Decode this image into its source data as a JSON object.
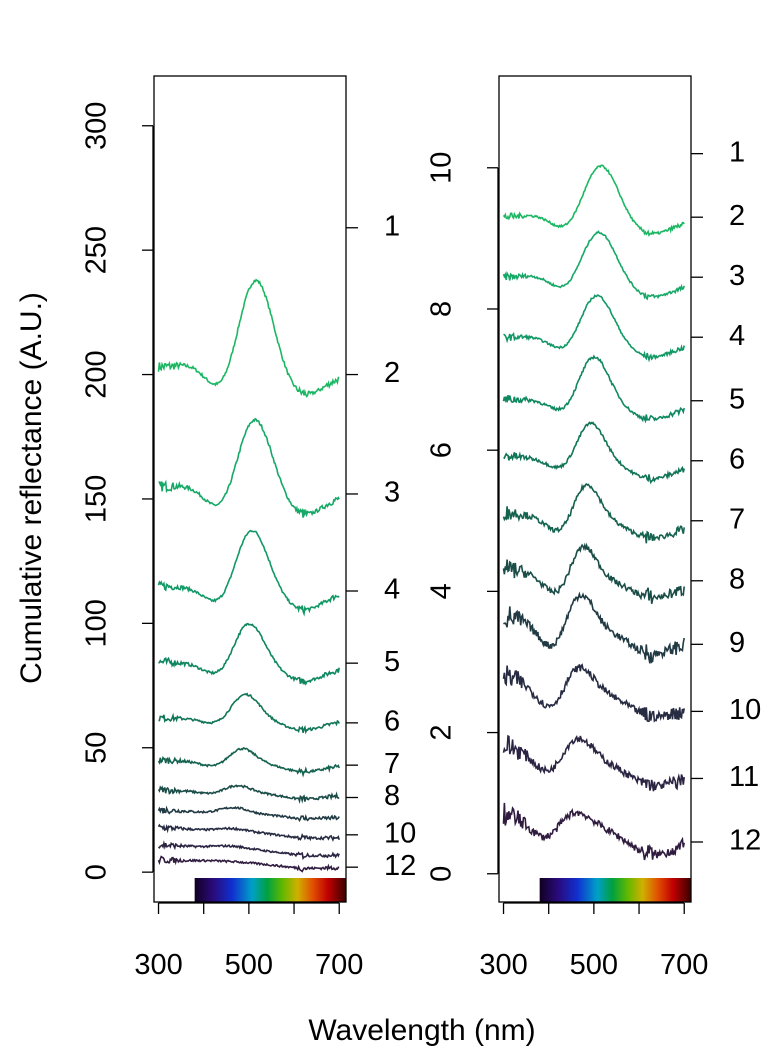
{
  "chart_data": {
    "type": "line",
    "ylabel": "Cumulative reflectance (A.U.)",
    "xlabel": "Wavelength (nm)",
    "panels": [
      {
        "xlim": [
          290,
          715
        ],
        "ylim": [
          -12,
          320
        ],
        "x_ticks": [
          300,
          500,
          700
        ],
        "y_ticks": [
          0,
          50,
          100,
          150,
          200,
          250,
          300
        ],
        "right_labels": [
          {
            "label": "1",
            "y": 259
          },
          {
            "label": "2",
            "y": 200
          },
          {
            "label": "3",
            "y": 152
          },
          {
            "label": "4",
            "y": 113
          },
          {
            "label": "5",
            "y": 84
          },
          {
            "label": "6",
            "y": 60
          },
          {
            "label": "7",
            "y": 43
          },
          {
            "label": "8",
            "y": 30
          },
          {
            "label": "10",
            "y": 15
          },
          {
            "label": "12",
            "y": 2
          }
        ],
        "spectrum_bar": {
          "x_start": 380,
          "x_end": 715
        },
        "series": [
          {
            "name": "2",
            "color": "#1db763",
            "x_start": 300,
            "x_end": 700,
            "base": 203,
            "offset_end": -3,
            "uv_amp": 2,
            "uv_center": 380,
            "dip_amp": -10,
            "dip_center": 440,
            "peak_amp": 38,
            "peak_center": 515,
            "peak_width": 38,
            "trough_amp": -9,
            "trough_center": 620,
            "noise": 0.6
          },
          {
            "name": "3",
            "color": "#16a866",
            "x_start": 300,
            "x_end": 700,
            "base": 155,
            "offset_end": -3,
            "uv_amp": 1,
            "uv_center": 380,
            "dip_amp": -10,
            "dip_center": 440,
            "peak_amp": 30,
            "peak_center": 512,
            "peak_width": 38,
            "trough_amp": -9,
            "trough_center": 620,
            "noise": 0.6
          },
          {
            "name": "4",
            "color": "#119865",
            "x_start": 300,
            "x_end": 700,
            "base": 115,
            "offset_end": -2,
            "uv_amp": 0,
            "uv_center": 380,
            "dip_amp": -8,
            "dip_center": 440,
            "peak_amp": 25,
            "peak_center": 505,
            "peak_width": 36,
            "trough_amp": -8,
            "trough_center": 620,
            "noise": 0.5
          },
          {
            "name": "5",
            "color": "#0f8760",
            "x_start": 300,
            "x_end": 700,
            "base": 84.5,
            "offset_end": -2,
            "uv_amp": 0,
            "uv_center": 380,
            "dip_amp": -6,
            "dip_center": 440,
            "peak_amp": 18,
            "peak_center": 498,
            "peak_width": 34,
            "trough_amp": -6,
            "trough_center": 620,
            "noise": 0.5
          },
          {
            "name": "6",
            "color": "#117557",
            "x_start": 300,
            "x_end": 700,
            "base": 62,
            "offset_end": -1,
            "uv_amp": 0,
            "uv_center": 380,
            "dip_amp": -3,
            "dip_center": 440,
            "peak_amp": 11,
            "peak_center": 490,
            "peak_width": 32,
            "trough_amp": -4,
            "trough_center": 620,
            "noise": 0.4
          },
          {
            "name": "7",
            "color": "#15624f",
            "x_start": 300,
            "x_end": 700,
            "base": 45,
            "offset_end": -2,
            "uv_amp": 0,
            "uv_center": 380,
            "dip_amp": -3,
            "dip_center": 440,
            "peak_amp": 7,
            "peak_center": 480,
            "peak_width": 30,
            "trough_amp": -3,
            "trough_center": 620,
            "noise": 0.4
          },
          {
            "name": "8",
            "color": "#1b4d48",
            "x_start": 300,
            "x_end": 700,
            "base": 33,
            "offset_end": -2,
            "uv_amp": 0,
            "uv_center": 380,
            "dip_amp": -2,
            "dip_center": 440,
            "peak_amp": 4,
            "peak_center": 468,
            "peak_width": 30,
            "trough_amp": -2,
            "trough_center": 620,
            "noise": 0.4
          },
          {
            "name": "9",
            "color": "#213a43",
            "x_start": 300,
            "x_end": 700,
            "base": 25,
            "offset_end": -3,
            "uv_amp": 0,
            "uv_center": 380,
            "dip_amp": -1,
            "dip_center": 440,
            "peak_amp": 3,
            "peak_center": 462,
            "peak_width": 32,
            "trough_amp": -1,
            "trough_center": 620,
            "noise": 0.4
          },
          {
            "name": "10",
            "color": "#272c42",
            "x_start": 300,
            "x_end": 700,
            "base": 18,
            "offset_end": -4,
            "uv_amp": 0,
            "uv_center": 380,
            "dip_amp": -1,
            "dip_center": 440,
            "peak_amp": 2,
            "peak_center": 455,
            "peak_width": 35,
            "trough_amp": -1,
            "trough_center": 620,
            "noise": 0.4
          },
          {
            "name": "11",
            "color": "#2b2442",
            "x_start": 300,
            "x_end": 700,
            "base": 11,
            "offset_end": -4,
            "uv_amp": 0,
            "uv_center": 380,
            "dip_amp": -1,
            "dip_center": 440,
            "peak_amp": 2,
            "peak_center": 450,
            "peak_width": 38,
            "trough_amp": -1,
            "trough_center": 620,
            "noise": 0.4
          },
          {
            "name": "12",
            "color": "#2f1c3f",
            "x_start": 300,
            "x_end": 700,
            "base": 5,
            "offset_end": -3,
            "uv_amp": 0,
            "uv_center": 380,
            "dip_amp": -1,
            "dip_center": 440,
            "peak_amp": 1.5,
            "peak_center": 440,
            "peak_width": 40,
            "trough_amp": -1,
            "trough_center": 620,
            "noise": 0.4
          }
        ]
      },
      {
        "xlim": [
          290,
          715
        ],
        "ylim": [
          -0.4,
          11.3
        ],
        "x_ticks": [
          300,
          500,
          700
        ],
        "y_ticks": [
          0,
          2,
          4,
          6,
          8,
          10
        ],
        "right_labels": [
          {
            "label": "1",
            "y": 10.2
          },
          {
            "label": "2",
            "y": 9.3
          },
          {
            "label": "3",
            "y": 8.45
          },
          {
            "label": "4",
            "y": 7.6
          },
          {
            "label": "5",
            "y": 6.7
          },
          {
            "label": "6",
            "y": 5.85
          },
          {
            "label": "7",
            "y": 5.0
          },
          {
            "label": "8",
            "y": 4.15
          },
          {
            "label": "9",
            "y": 3.25
          },
          {
            "label": "10",
            "y": 2.3
          },
          {
            "label": "11",
            "y": 1.35
          },
          {
            "label": "12",
            "y": 0.45
          }
        ],
        "spectrum_bar": {
          "x_start": 380,
          "x_end": 715
        },
        "series": [
          {
            "name": "2",
            "color": "#1db763",
            "x_start": 300,
            "x_end": 700,
            "base": 9.3,
            "offset_end": -0.05,
            "uv_amp": 0.05,
            "uv_center": 380,
            "dip_amp": -0.2,
            "dip_center": 440,
            "peak_amp": 0.78,
            "peak_center": 515,
            "peak_width": 38,
            "trough_amp": -0.2,
            "trough_center": 625,
            "noise": 0.015
          },
          {
            "name": "3",
            "color": "#16a866",
            "x_start": 300,
            "x_end": 700,
            "base": 8.45,
            "offset_end": -0.1,
            "uv_amp": 0.05,
            "uv_center": 380,
            "dip_amp": -0.2,
            "dip_center": 440,
            "peak_amp": 0.72,
            "peak_center": 510,
            "peak_width": 38,
            "trough_amp": -0.2,
            "trough_center": 625,
            "noise": 0.015
          },
          {
            "name": "4",
            "color": "#119865",
            "x_start": 300,
            "x_end": 700,
            "base": 7.6,
            "offset_end": -0.1,
            "uv_amp": 0.03,
            "uv_center": 380,
            "dip_amp": -0.2,
            "dip_center": 440,
            "peak_amp": 0.68,
            "peak_center": 505,
            "peak_width": 36,
            "trough_amp": -0.2,
            "trough_center": 625,
            "noise": 0.015
          },
          {
            "name": "5",
            "color": "#0f8760",
            "x_start": 300,
            "x_end": 700,
            "base": 6.72,
            "offset_end": -0.1,
            "uv_amp": 0.02,
            "uv_center": 380,
            "dip_amp": -0.2,
            "dip_center": 440,
            "peak_amp": 0.7,
            "peak_center": 498,
            "peak_width": 34,
            "trough_amp": -0.2,
            "trough_center": 625,
            "noise": 0.02
          },
          {
            "name": "6",
            "color": "#117557",
            "x_start": 300,
            "x_end": 700,
            "base": 5.92,
            "offset_end": -0.15,
            "uv_amp": 0,
            "uv_center": 380,
            "dip_amp": -0.2,
            "dip_center": 440,
            "peak_amp": 0.6,
            "peak_center": 490,
            "peak_width": 32,
            "trough_amp": -0.2,
            "trough_center": 625,
            "noise": 0.02
          },
          {
            "name": "7",
            "color": "#15624f",
            "x_start": 300,
            "x_end": 700,
            "base": 5.12,
            "offset_end": -0.2,
            "uv_amp": 0,
            "uv_center": 380,
            "dip_amp": -0.3,
            "dip_center": 435,
            "peak_amp": 0.6,
            "peak_center": 480,
            "peak_width": 30,
            "trough_amp": -0.2,
            "trough_center": 625,
            "noise": 0.03
          },
          {
            "name": "8",
            "color": "#1b4d48",
            "x_start": 300,
            "x_end": 700,
            "base": 4.32,
            "offset_end": -0.25,
            "uv_amp": 0,
            "uv_center": 380,
            "dip_amp": -0.4,
            "dip_center": 430,
            "peak_amp": 0.6,
            "peak_center": 470,
            "peak_width": 30,
            "trough_amp": -0.2,
            "trough_center": 625,
            "noise": 0.04
          },
          {
            "name": "9",
            "color": "#213a43",
            "x_start": 300,
            "x_end": 700,
            "base": 3.65,
            "offset_end": -0.35,
            "uv_amp": 0,
            "uv_center": 380,
            "dip_amp": -0.5,
            "dip_center": 420,
            "peak_amp": 0.65,
            "peak_center": 462,
            "peak_width": 32,
            "trough_amp": -0.25,
            "trough_center": 625,
            "noise": 0.05
          },
          {
            "name": "10",
            "color": "#272c42",
            "x_start": 300,
            "x_end": 700,
            "base": 2.8,
            "offset_end": -0.45,
            "uv_amp": 0,
            "uv_center": 380,
            "dip_amp": -0.5,
            "dip_center": 415,
            "peak_amp": 0.5,
            "peak_center": 455,
            "peak_width": 35,
            "trough_amp": -0.2,
            "trough_center": 625,
            "noise": 0.05
          },
          {
            "name": "11",
            "color": "#2b2442",
            "x_start": 300,
            "x_end": 700,
            "base": 1.82,
            "offset_end": -0.45,
            "uv_amp": 0,
            "uv_center": 380,
            "dip_amp": -0.45,
            "dip_center": 410,
            "peak_amp": 0.45,
            "peak_center": 450,
            "peak_width": 38,
            "trough_amp": -0.2,
            "trough_center": 625,
            "noise": 0.05
          },
          {
            "name": "12",
            "color": "#2f1c3f",
            "x_start": 300,
            "x_end": 700,
            "base": 0.85,
            "offset_end": -0.4,
            "uv_amp": 0,
            "uv_center": 380,
            "dip_amp": -0.4,
            "dip_center": 400,
            "peak_amp": 0.3,
            "peak_center": 440,
            "peak_width": 42,
            "trough_amp": -0.25,
            "trough_center": 625,
            "noise": 0.05
          }
        ]
      }
    ]
  }
}
